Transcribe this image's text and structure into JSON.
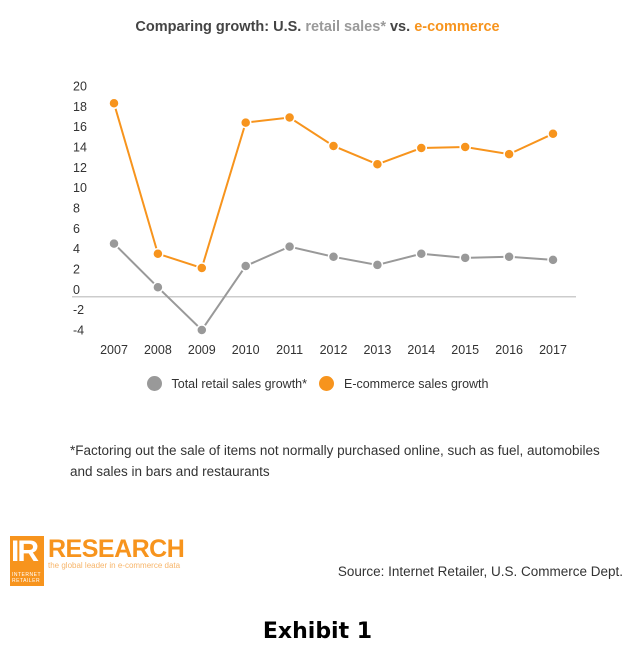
{
  "chart_data": {
    "type": "line",
    "title": {
      "prefix": "Comparing growth: U.S. ",
      "highlight1": "retail sales*",
      "middle": " vs. ",
      "highlight2": "e-commerce"
    },
    "xlabel": "",
    "ylabel": "",
    "x": [
      "2007",
      "2008",
      "2009",
      "2010",
      "2011",
      "2012",
      "2013",
      "2014",
      "2015",
      "2016",
      "2017"
    ],
    "yticks": [
      20,
      18,
      16,
      14,
      12,
      10,
      8,
      6,
      4,
      2,
      0,
      -2,
      -4
    ],
    "ylim": [
      -4,
      20
    ],
    "grid": false,
    "legend_position": "bottom-center",
    "series": [
      {
        "name": "Total retail sales growth*",
        "color": "#999999",
        "values": [
          4.5,
          0.2,
          -4.0,
          2.3,
          4.2,
          3.2,
          2.4,
          3.5,
          3.1,
          3.2,
          2.9
        ]
      },
      {
        "name": "E-commerce sales growth",
        "color": "#f7941d",
        "values": [
          18.3,
          3.5,
          2.1,
          16.4,
          16.9,
          14.1,
          12.3,
          13.9,
          14.0,
          13.3,
          15.3
        ]
      }
    ]
  },
  "colors": {
    "retail": "#999999",
    "ecommerce": "#f7941d",
    "axis": "#bbbbbb"
  },
  "footnote": "*Factoring out the sale of items not normally purchased online, such as fuel, automobiles and sales in bars and restaurants",
  "logo": {
    "mark": "IR",
    "mark_sub_line1": "INTERNET",
    "mark_sub_line2": "RETAILER",
    "name": "RESEARCH",
    "tagline": "the global leader in e-commerce data"
  },
  "source": "Source: Internet Retailer, U.S. Commerce Dept.",
  "exhibit_label": "Exhibit 1"
}
